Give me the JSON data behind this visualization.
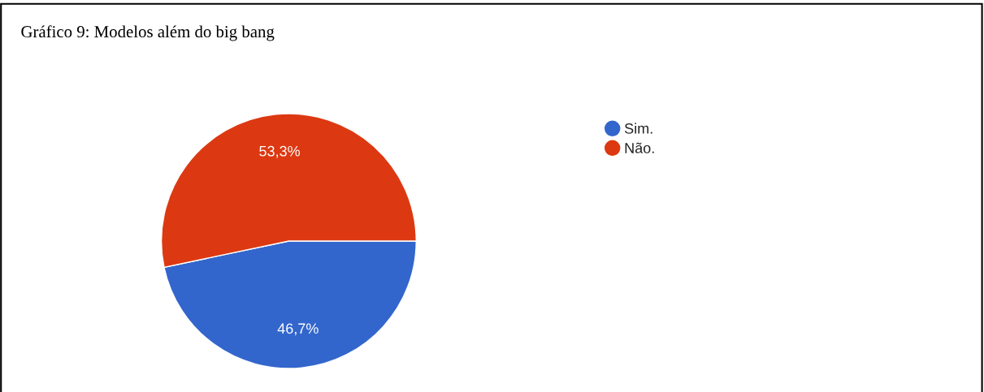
{
  "chart_data": {
    "type": "pie",
    "title": "Gráfico 9: Modelos além do big bang",
    "categories": [
      "Sim.",
      "Não."
    ],
    "values": [
      46.7,
      53.3
    ],
    "value_labels": [
      "46,7%",
      "53,3%"
    ],
    "colors": [
      "#3366cc",
      "#dc3912"
    ],
    "legend": "right"
  }
}
